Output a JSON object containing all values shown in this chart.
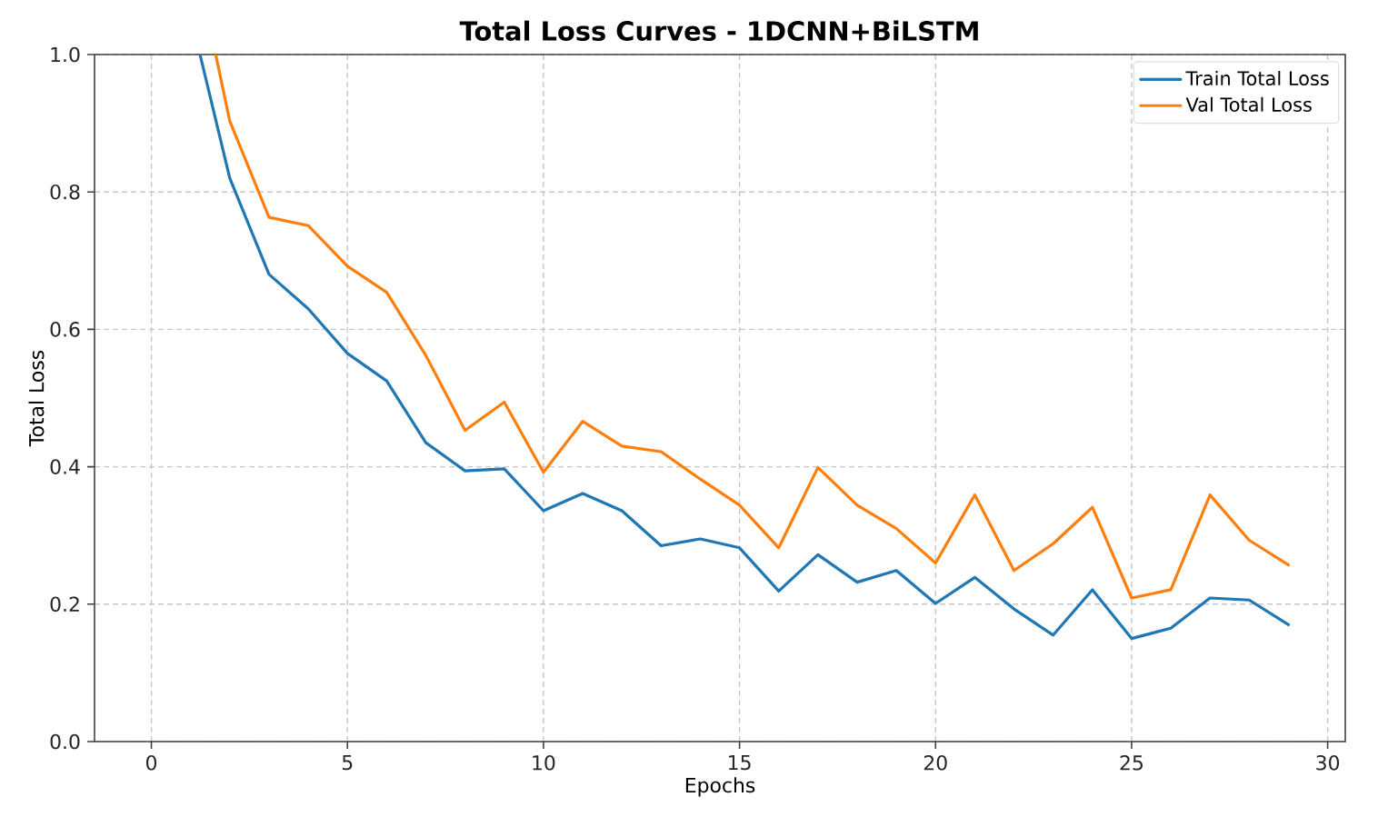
{
  "chart_data": {
    "type": "line",
    "title": "Total Loss Curves - 1DCNN+BiLSTM",
    "xlabel": "Epochs",
    "ylabel": "Total Loss",
    "xlim": [
      -1.45,
      30.45
    ],
    "ylim": [
      0,
      1.0
    ],
    "xticks": [
      0,
      5,
      10,
      15,
      20,
      25,
      30
    ],
    "yticks": [
      {
        "value": 0,
        "label": "0.0"
      },
      {
        "value": 0.2,
        "label": "0.2"
      },
      {
        "value": 0.4,
        "label": "0.4"
      },
      {
        "value": 0.6,
        "label": "0.6"
      },
      {
        "value": 0.8,
        "label": "0.8"
      },
      {
        "value": 1.0,
        "label": "1.0"
      }
    ],
    "series": [
      {
        "name": "Train Total Loss",
        "color": "#1f77b4",
        "x": [
          1.24,
          2,
          3,
          4,
          5,
          6,
          7,
          8,
          9,
          10,
          11,
          12,
          13,
          14,
          15,
          16,
          17,
          18,
          19,
          20,
          21,
          22,
          23,
          24,
          25,
          26,
          27,
          28,
          29
        ],
        "values": [
          1.0,
          0.82,
          0.68,
          0.63,
          0.565,
          0.525,
          0.435,
          0.394,
          0.397,
          0.336,
          0.361,
          0.336,
          0.285,
          0.295,
          0.282,
          0.219,
          0.272,
          0.232,
          0.249,
          0.201,
          0.239,
          0.193,
          0.155,
          0.221,
          0.15,
          0.165,
          0.209,
          0.206,
          0.17
        ]
      },
      {
        "name": "Val Total Loss",
        "color": "#ff7f0e",
        "x": [
          1.64,
          2,
          3,
          4,
          5,
          6,
          7,
          8,
          9,
          10,
          11,
          12,
          13,
          14,
          15,
          16,
          17,
          18,
          19,
          20,
          21,
          22,
          23,
          24,
          25,
          26,
          27,
          28,
          29
        ],
        "values": [
          1.0,
          0.903,
          0.763,
          0.751,
          0.692,
          0.654,
          0.562,
          0.453,
          0.494,
          0.392,
          0.466,
          0.43,
          0.422,
          0.382,
          0.344,
          0.282,
          0.399,
          0.344,
          0.31,
          0.26,
          0.359,
          0.249,
          0.288,
          0.341,
          0.209,
          0.221,
          0.359,
          0.293,
          0.257
        ]
      }
    ],
    "grid": true,
    "legend": "top right",
    "line_style": "solid"
  }
}
